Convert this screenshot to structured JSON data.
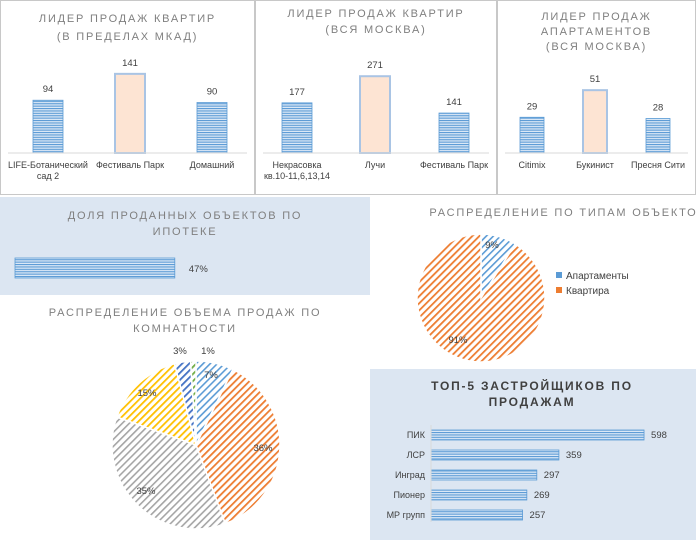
{
  "colors": {
    "bar_blue": "#5b9bd5",
    "bar_highlight": "#f8cbad",
    "orange": "#ed7d31",
    "gray": "#a5a5a5",
    "yellow": "#ffc000",
    "darkblue": "#4472c4",
    "panel_blue": "#dce6f2"
  },
  "chart_data": [
    {
      "id": "leader-mkad",
      "type": "bar",
      "title_lines": [
        "ЛИДЕР ПРОДАЖ  КВАРТИР",
        "(В ПРЕДЕЛАХ МКАД)"
      ],
      "categories": [
        [
          "LIFE-Ботанический",
          "сад 2"
        ],
        [
          "Фестиваль Парк"
        ],
        [
          "Домашний"
        ]
      ],
      "values": [
        94,
        141,
        90
      ],
      "highlight_index": 1,
      "ylim": [
        0,
        155
      ]
    },
    {
      "id": "leader-moscow",
      "type": "bar",
      "title_lines": [
        "ЛИДЕР ПРОДАЖ  КВАРТИР",
        "(ВСЯ МОСКВА)"
      ],
      "categories": [
        [
          "Некрасовка",
          "кв.10-11,6,13,14"
        ],
        [
          "Лучи"
        ],
        [
          "Фестиваль Парк"
        ]
      ],
      "values": [
        177,
        271,
        141
      ],
      "highlight_index": 1,
      "ylim": [
        0,
        300
      ]
    },
    {
      "id": "leader-apartments",
      "type": "bar",
      "title_lines": [
        "ЛИДЕР ПРОДАЖ",
        "АПАРТАМЕНТОВ",
        "(ВСЯ МОСКВА)"
      ],
      "categories": [
        [
          "Citimix"
        ],
        [
          "Букинист"
        ],
        [
          "Пресня Сити"
        ]
      ],
      "values": [
        29,
        51,
        28
      ],
      "highlight_index": 1,
      "ylim": [
        0,
        56
      ]
    },
    {
      "id": "mortgage-share",
      "type": "bar",
      "orientation": "horizontal",
      "title_lines": [
        "ДОЛЯ ПРОДАННЫХ ОБЪЕКТОВ ПО",
        "ИПОТЕКЕ"
      ],
      "values": [
        47
      ],
      "value_labels": [
        "47%"
      ],
      "xlim": [
        0,
        100
      ]
    },
    {
      "id": "types-pie",
      "type": "pie",
      "title_lines": [
        "РАСПРЕДЕЛЕНИЕ  ПО ТИПАМ ОБЪЕКТОВ"
      ],
      "labels": [
        "Апартаменты",
        "Квартира"
      ],
      "values": [
        9,
        91
      ],
      "value_labels": [
        "9%",
        "91%"
      ],
      "colors": [
        "#5b9bd5",
        "#ed7d31"
      ],
      "legend": "right"
    },
    {
      "id": "rooms-pie",
      "type": "pie",
      "title_lines": [
        "РАСПРЕДЕЛЕНИЕ  ОБЪЕМА ПРОДАЖ ПО",
        "КОМНАТНОСТИ"
      ],
      "values": [
        7,
        36,
        35,
        15,
        3,
        1
      ],
      "value_labels": [
        "7%",
        "36%",
        "35%",
        "15%",
        "3%",
        "1%"
      ],
      "colors": [
        "#5b9bd5",
        "#ed7d31",
        "#a5a5a5",
        "#ffc000",
        "#4472c4",
        "#70ad47"
      ]
    },
    {
      "id": "top5-developers",
      "type": "bar",
      "orientation": "horizontal",
      "title_lines": [
        "ТОП-5 ЗАСТРОЙЩИКОВ ПО",
        "ПРОДАЖАМ"
      ],
      "categories": [
        "ПИК",
        "ЛСР",
        "Инград",
        "Пионер",
        "МР групп"
      ],
      "values": [
        598,
        359,
        297,
        269,
        257
      ],
      "xlim": [
        0,
        640
      ]
    }
  ]
}
